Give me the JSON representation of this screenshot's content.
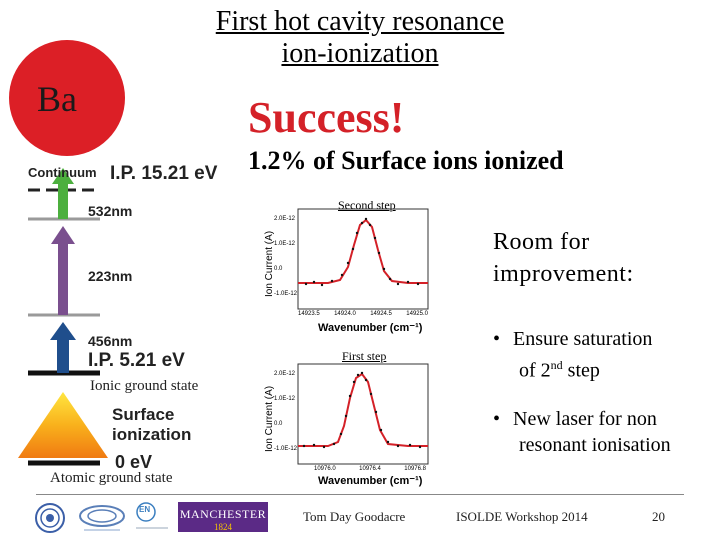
{
  "slide": {
    "title_line1": "First hot cavity resonance",
    "title_line2": "ion-ionization",
    "element_symbol": "Ba",
    "success_text": "Success!",
    "result_text": "1.2% of Surface ions ionized"
  },
  "scheme": {
    "continuum": "Continuum",
    "ip_top": "I.P. 15.21 eV",
    "wl_532": "532nm",
    "wl_223": "223nm",
    "wl_456": "456nm",
    "ip_bottom": "I.P. 5.21 eV",
    "ionic_ground": "Ionic ground state",
    "surface_ionization_1": "Surface",
    "surface_ionization_2": "ionization",
    "zero_ev": "0 eV",
    "atomic_ground": "Atomic ground state"
  },
  "plots": {
    "second_step": {
      "label": "Second step",
      "ylabel": "Ion Current (A)",
      "xlabel": "Wavenumber (cm⁻¹)",
      "y_ticks": [
        "2.0E-12",
        "1.0E-12",
        "0.0",
        "-1.0E-12"
      ],
      "x_ticks": [
        "14923.5",
        "14924.0",
        "14924.5",
        "14925.0"
      ]
    },
    "first_step": {
      "label": "First step",
      "ylabel": "Ion Current (A)",
      "xlabel": "Wavenumber (cm⁻¹)",
      "y_ticks": [
        "2.0E-12",
        "1.0E-12",
        "0.0",
        "-1.0E-12"
      ],
      "x_ticks": [
        "10976.0",
        "10976.4",
        "10976.8"
      ]
    }
  },
  "right_panel": {
    "room_line1": "Room for",
    "room_line2": "improvement:",
    "bullet1_a": "Ensure saturation",
    "bullet1_b": "of 2",
    "bullet1_sup": "nd",
    "bullet1_c": " step",
    "bullet2_a": "New laser for non",
    "bullet2_b": "resonant ionisation"
  },
  "footer": {
    "author": "Tom Day Goodacre",
    "event": "ISOLDE Workshop 2014",
    "page_number": "20",
    "manchester": "MANCHESTER",
    "manchester_year": "1824",
    "en_label": "EN"
  },
  "colors": {
    "red": "#dc1f26",
    "arrow_green": "#4caf3e",
    "arrow_purple": "#7a4f8e",
    "arrow_blue": "#1f4e8c"
  }
}
